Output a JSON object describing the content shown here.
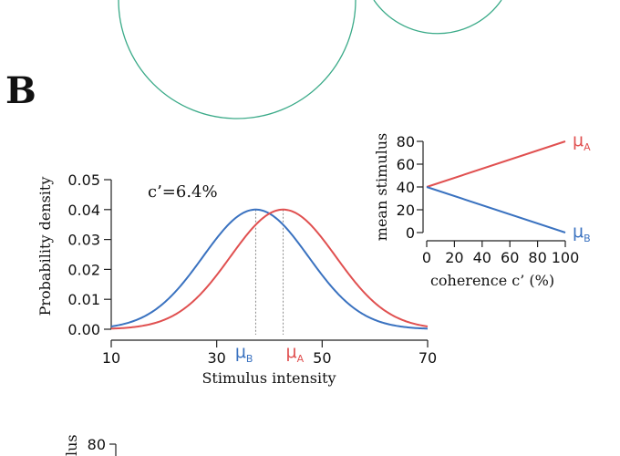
{
  "panel_label": "B",
  "colors": {
    "A": "#e05050",
    "B": "#3a72c0",
    "top_circles": "#3aaa88",
    "guide": "#8a8a8a"
  },
  "chart_data": [
    {
      "type": "line",
      "title": "",
      "annotation": "c’=6.4%",
      "xlabel": "Stimulus intensity",
      "ylabel": "Probability density",
      "xlim": [
        10,
        70
      ],
      "ylim": [
        0,
        0.05
      ],
      "x_ticks": [
        "10",
        "30",
        "50",
        "70"
      ],
      "y_ticks": [
        "0.00",
        "0.01",
        "0.02",
        "0.03",
        "0.04",
        "0.05"
      ],
      "grid": false,
      "series": [
        {
          "key": "B",
          "mean": 37.4,
          "sd": 10,
          "peak": 0.04
        },
        {
          "key": "A",
          "mean": 42.6,
          "sd": 10,
          "peak": 0.04
        }
      ],
      "markers": [
        {
          "key": "B",
          "symbol": "μ",
          "subscript": "B",
          "x": 37.4
        },
        {
          "key": "A",
          "symbol": "μ",
          "subscript": "A",
          "x": 42.6
        }
      ]
    },
    {
      "type": "line",
      "xlabel": "coherence c’  (%)",
      "ylabel": "mean stimulus",
      "xlim": [
        0,
        100
      ],
      "ylim": [
        0,
        80
      ],
      "x_ticks": [
        "0",
        "20",
        "40",
        "60",
        "80",
        "100"
      ],
      "y_ticks": [
        "0",
        "20",
        "40",
        "60",
        "80"
      ],
      "grid": false,
      "series": [
        {
          "key": "A",
          "x": [
            0,
            100
          ],
          "y": [
            40,
            80
          ],
          "label_symbol": "μ",
          "label_subscript": "A"
        },
        {
          "key": "B",
          "x": [
            0,
            100
          ],
          "y": [
            40,
            0
          ],
          "label_symbol": "μ",
          "label_subscript": "B"
        }
      ]
    },
    {
      "type": "line",
      "ylabel": "mean stimulus",
      "visible_ylabel_fragment": "lus",
      "y_ticks": [
        "80"
      ]
    }
  ]
}
